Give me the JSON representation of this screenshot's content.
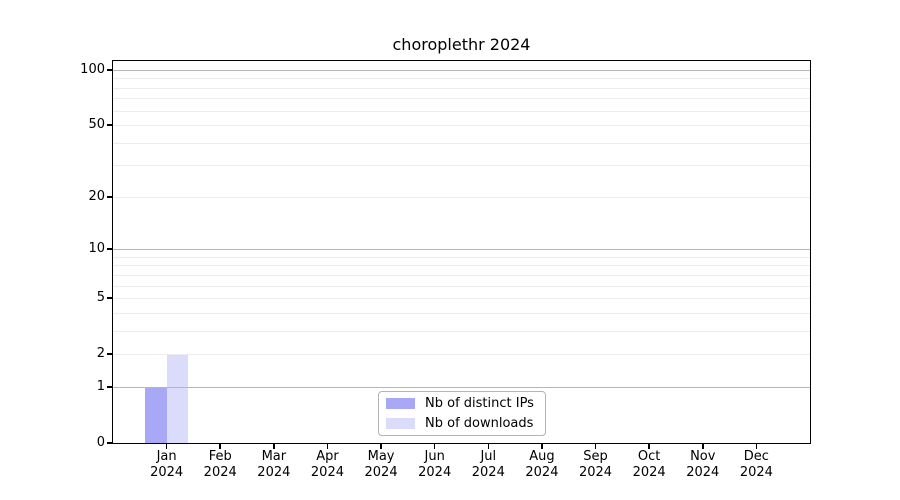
{
  "chart_data": {
    "type": "bar",
    "title": "choroplethr 2024",
    "x": {
      "months": [
        "Jan",
        "Feb",
        "Mar",
        "Apr",
        "May",
        "Jun",
        "Jul",
        "Aug",
        "Sep",
        "Oct",
        "Nov",
        "Dec"
      ],
      "year": "2024"
    },
    "series": [
      {
        "name": "Nb of distinct IPs",
        "color": "#a8a8f6",
        "values": [
          1,
          0,
          0,
          0,
          0,
          0,
          0,
          0,
          0,
          0,
          0,
          0
        ]
      },
      {
        "name": "Nb of downloads",
        "color": "#dbdbfa",
        "values": [
          2,
          0,
          0,
          0,
          0,
          0,
          0,
          0,
          0,
          0,
          0,
          0
        ]
      }
    ],
    "y_axis": {
      "scale": "log1p",
      "tick_values": [
        0,
        1,
        2,
        5,
        10,
        20,
        50,
        100
      ],
      "major_gridlines": [
        1,
        10,
        100
      ],
      "minor_gridlines": [
        2,
        3,
        4,
        5,
        6,
        7,
        8,
        9,
        20,
        30,
        40,
        50,
        60,
        70,
        80,
        90
      ],
      "range": [
        0,
        112
      ]
    },
    "grid": {
      "major_color": "#b6b6b6",
      "minor_color": "#ececec"
    },
    "legend_position": "lower center",
    "axis_color": "#000000",
    "background": "#ffffff"
  }
}
